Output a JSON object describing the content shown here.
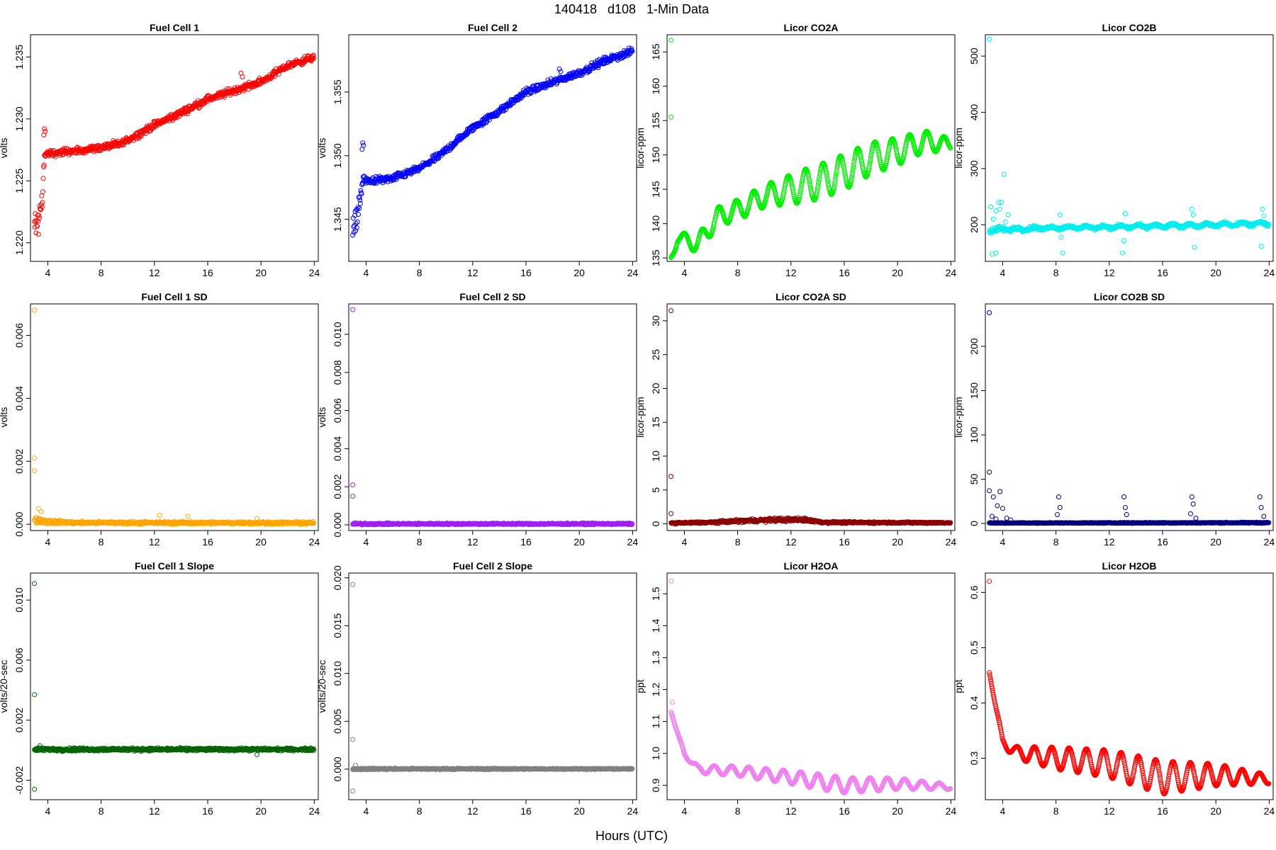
{
  "figure": {
    "title": "140418   d108   1-Min Data",
    "xlabel": "Hours (UTC)"
  },
  "chart_data": [
    {
      "type": "scatter",
      "title": "Fuel Cell 1",
      "ylabel": "volts",
      "color": "#ff0000",
      "xlim": [
        2.7,
        24.3
      ],
      "xticks": [
        4,
        8,
        12,
        16,
        20,
        24
      ],
      "ylim": [
        1.2185,
        1.2368
      ],
      "yticks": [
        "1.220",
        "1.225",
        "1.230",
        "1.235"
      ],
      "anchors": [
        [
          3.0,
          1.2212,
          0.0009
        ],
        [
          3.3,
          1.2216,
          0.0008
        ],
        [
          3.6,
          1.224,
          0.0008
        ],
        [
          3.75,
          1.227,
          0.0003
        ],
        [
          4,
          1.2272,
          0.0002
        ],
        [
          6,
          1.2274,
          0.0002
        ],
        [
          8,
          1.2277,
          0.0002
        ],
        [
          9.5,
          1.228,
          0.0002
        ],
        [
          12,
          1.2295,
          0.0002
        ],
        [
          14,
          1.2305,
          0.0002
        ],
        [
          16,
          1.2316,
          0.0002
        ],
        [
          20,
          1.233,
          0.0002
        ],
        [
          22,
          1.2343,
          0.0002
        ],
        [
          24,
          1.235,
          0.0002
        ]
      ],
      "outliers": [
        [
          3.7,
          1.2287
        ],
        [
          3.75,
          1.2292
        ],
        [
          3.8,
          1.229
        ],
        [
          18.5,
          1.2337
        ],
        [
          18.6,
          1.2334
        ]
      ]
    },
    {
      "type": "scatter",
      "title": "Fuel Cell 2",
      "ylabel": "volts",
      "color": "#0000ff",
      "xlim": [
        2.7,
        24.3
      ],
      "xticks": [
        4,
        8,
        12,
        16,
        20,
        24
      ],
      "ylim": [
        1.3417,
        1.3595
      ],
      "yticks": [
        "1.345",
        "1.350",
        "1.355"
      ],
      "anchors": [
        [
          3.0,
          1.3438,
          0.0009
        ],
        [
          3.3,
          1.3452,
          0.0007
        ],
        [
          3.6,
          1.347,
          0.0006
        ],
        [
          3.8,
          1.3482,
          0.0002
        ],
        [
          4,
          1.348,
          0.0002
        ],
        [
          6,
          1.3482,
          0.0002
        ],
        [
          8,
          1.349,
          0.0002
        ],
        [
          9.5,
          1.35,
          0.0002
        ],
        [
          12,
          1.3522,
          0.0002
        ],
        [
          14,
          1.3535,
          0.0002
        ],
        [
          16,
          1.355,
          0.0002
        ],
        [
          20,
          1.3565,
          0.0002
        ],
        [
          22,
          1.3575,
          0.0002
        ],
        [
          24,
          1.3582,
          0.0002
        ]
      ],
      "outliers": [
        [
          3.7,
          1.3505
        ],
        [
          3.75,
          1.351
        ],
        [
          3.8,
          1.3508
        ],
        [
          18.5,
          1.3568
        ],
        [
          18.6,
          1.3566
        ]
      ]
    },
    {
      "type": "scatter",
      "title": "Licor CO2A",
      "ylabel": "licor-ppm",
      "color": "#00ee00",
      "xlim": [
        2.7,
        24.3
      ],
      "xticks": [
        4,
        8,
        12,
        16,
        20,
        24
      ],
      "ylim": [
        134.5,
        167.5
      ],
      "yticks": [
        "135",
        "140",
        "145",
        "150",
        "155",
        "160",
        "165"
      ],
      "anchors": [
        [
          3,
          135,
          0
        ],
        [
          3.5,
          138,
          0
        ],
        [
          5,
          137,
          0
        ],
        [
          6.5,
          141,
          0
        ],
        [
          8,
          142,
          0
        ],
        [
          10,
          144,
          0
        ],
        [
          12,
          145,
          0
        ],
        [
          14,
          146,
          0
        ],
        [
          16,
          147.5,
          0
        ],
        [
          18,
          149.5,
          0
        ],
        [
          20,
          150.5,
          0
        ],
        [
          22,
          152,
          0
        ],
        [
          24,
          151.5,
          0
        ]
      ],
      "oscillation": {
        "period": 1.3,
        "amplitude": [
          [
            3,
            0.6
          ],
          [
            5,
            1.3
          ],
          [
            10,
            1.6
          ],
          [
            13,
            2.4
          ],
          [
            16,
            2.6
          ],
          [
            20,
            2.0
          ],
          [
            23,
            1.3
          ],
          [
            24,
            0.8
          ]
        ]
      },
      "outliers": [
        [
          3.0,
          166.7
        ],
        [
          3.0,
          155.5
        ]
      ]
    },
    {
      "type": "scatter",
      "title": "Licor CO2B",
      "ylabel": "licor-ppm",
      "color": "#00eeee",
      "xlim": [
        2.7,
        24.3
      ],
      "xticks": [
        4,
        8,
        12,
        16,
        20,
        24
      ],
      "ylim": [
        135,
        538
      ],
      "yticks": [
        "200",
        "300",
        "400",
        "500"
      ],
      "anchors": [
        [
          3,
          190,
          4
        ],
        [
          4,
          192,
          3
        ],
        [
          8,
          195,
          2
        ],
        [
          12,
          196,
          2
        ],
        [
          16,
          198,
          2
        ],
        [
          20,
          200,
          2
        ],
        [
          24,
          203,
          2
        ]
      ],
      "oscillation": {
        "period": 1.3,
        "amplitude": [
          [
            3,
            2
          ],
          [
            24,
            3
          ]
        ]
      },
      "outliers": [
        [
          3.0,
          530
        ],
        [
          3.1,
          232
        ],
        [
          3.3,
          210
        ],
        [
          3.5,
          225
        ],
        [
          3.7,
          240
        ],
        [
          3.9,
          240
        ],
        [
          4.1,
          290
        ],
        [
          3.2,
          148
        ],
        [
          3.5,
          150
        ],
        [
          3.8,
          228
        ],
        [
          4.4,
          218
        ],
        [
          4.2,
          205
        ],
        [
          4.6,
          188
        ],
        [
          8.3,
          218
        ],
        [
          8.4,
          178
        ],
        [
          8.5,
          150
        ],
        [
          13.2,
          220
        ],
        [
          13.1,
          172
        ],
        [
          13.0,
          150
        ],
        [
          18.2,
          228
        ],
        [
          18.3,
          218
        ],
        [
          18.4,
          160
        ],
        [
          23.5,
          228
        ],
        [
          23.6,
          216
        ],
        [
          23.4,
          162
        ]
      ]
    },
    {
      "type": "scatter",
      "title": "Fuel Cell 1 SD",
      "ylabel": "volts",
      "color": "#ffa500",
      "xlim": [
        2.7,
        24.3
      ],
      "xticks": [
        4,
        8,
        12,
        16,
        20,
        24
      ],
      "ylim": [
        -0.0002,
        0.007
      ],
      "yticks": [
        "0.000",
        "0.002",
        "0.004",
        "0.006"
      ],
      "anchors": [
        [
          3,
          0.00015,
          7e-05
        ],
        [
          4,
          8e-05,
          5e-05
        ],
        [
          6,
          5e-05,
          3e-05
        ],
        [
          24,
          4e-05,
          3e-05
        ]
      ],
      "outliers": [
        [
          3.0,
          0.0068
        ],
        [
          3.0,
          0.0021
        ],
        [
          3.0,
          0.0017
        ],
        [
          3.3,
          0.0005
        ],
        [
          3.5,
          0.0004
        ],
        [
          12.4,
          0.00028
        ],
        [
          14.5,
          0.00025
        ],
        [
          19.7,
          0.00018
        ]
      ]
    },
    {
      "type": "scatter",
      "title": "Fuel Cell 2 SD",
      "ylabel": "volts",
      "color": "#a020f0",
      "xlim": [
        2.7,
        24.3
      ],
      "xticks": [
        4,
        8,
        12,
        16,
        20,
        24
      ],
      "ylim": [
        -0.0003,
        0.0116
      ],
      "yticks": [
        "0.000",
        "0.002",
        "0.004",
        "0.006",
        "0.008",
        "0.010"
      ],
      "anchors": [
        [
          3,
          5e-05,
          4e-05
        ],
        [
          6,
          5e-05,
          3e-05
        ],
        [
          24,
          5e-05,
          3e-05
        ]
      ],
      "outliers": [
        [
          3.0,
          0.0113
        ],
        [
          3.0,
          0.0021
        ],
        [
          3.0,
          0.0015
        ]
      ]
    },
    {
      "type": "scatter",
      "title": "Licor CO2A SD",
      "ylabel": "licor-ppm",
      "color": "#8b0000",
      "xlim": [
        2.7,
        24.3
      ],
      "xticks": [
        4,
        8,
        12,
        16,
        20,
        24
      ],
      "ylim": [
        -1.0,
        32.5
      ],
      "yticks": [
        "0",
        "5",
        "10",
        "15",
        "20",
        "25",
        "30"
      ],
      "anchors": [
        [
          3,
          0.1,
          0.08
        ],
        [
          6,
          0.2,
          0.1
        ],
        [
          8,
          0.4,
          0.15
        ],
        [
          11,
          0.6,
          0.2
        ],
        [
          13,
          0.6,
          0.2
        ],
        [
          14.5,
          0.2,
          0.1
        ],
        [
          24,
          0.15,
          0.08
        ]
      ],
      "outliers": [
        [
          3.0,
          31.5
        ],
        [
          3.0,
          7.0
        ],
        [
          3.0,
          1.5
        ]
      ]
    },
    {
      "type": "scatter",
      "title": "Licor CO2B SD",
      "ylabel": "licor-ppm",
      "color": "#000080",
      "xlim": [
        2.7,
        24.3
      ],
      "xticks": [
        4,
        8,
        12,
        16,
        20,
        24
      ],
      "ylim": [
        -8,
        248
      ],
      "yticks": [
        "0",
        "50",
        "100",
        "150",
        "200"
      ],
      "anchors": [
        [
          3,
          0.5,
          0.3
        ],
        [
          24,
          0.8,
          0.4
        ]
      ],
      "outliers": [
        [
          3.0,
          238
        ],
        [
          3.0,
          58
        ],
        [
          3.0,
          37
        ],
        [
          3.3,
          30
        ],
        [
          3.6,
          20
        ],
        [
          3.2,
          8
        ],
        [
          3.8,
          36
        ],
        [
          4.0,
          17
        ],
        [
          3.5,
          5
        ],
        [
          4.3,
          6
        ],
        [
          4.6,
          4
        ],
        [
          8.2,
          30
        ],
        [
          8.3,
          18
        ],
        [
          8.1,
          10
        ],
        [
          13.1,
          30
        ],
        [
          13.2,
          18
        ],
        [
          13.3,
          10
        ],
        [
          18.2,
          30
        ],
        [
          18.3,
          22
        ],
        [
          18.1,
          11
        ],
        [
          18.5,
          6
        ],
        [
          23.3,
          30
        ],
        [
          23.4,
          18
        ],
        [
          23.6,
          8
        ]
      ]
    },
    {
      "type": "scatter",
      "title": "Fuel Cell 1 Slope",
      "ylabel": "volts/20-sec",
      "color": "#006400",
      "xlim": [
        2.7,
        24.3
      ],
      "xticks": [
        4,
        8,
        12,
        16,
        20,
        24
      ],
      "ylim": [
        -0.0033,
        0.0118
      ],
      "yticks": [
        "-0.002",
        "0.002",
        "0.006",
        "0.010"
      ],
      "anchors": [
        [
          3,
          5e-05,
          8e-05
        ],
        [
          24,
          5e-05,
          6e-05
        ]
      ],
      "outliers": [
        [
          3.0,
          0.0111
        ],
        [
          3.0,
          0.0037
        ],
        [
          3.0,
          -0.0026
        ],
        [
          3.4,
          0.0003
        ],
        [
          19.7,
          -0.0003
        ]
      ]
    },
    {
      "type": "scatter",
      "title": "Fuel Cell 2 Slope",
      "ylabel": "volts/20-sec",
      "color": "#808080",
      "xlim": [
        2.7,
        24.3
      ],
      "xticks": [
        4,
        8,
        12,
        16,
        20,
        24
      ],
      "ylim": [
        -0.0032,
        0.0205
      ],
      "yticks": [
        "0.000",
        "0.005",
        "0.010",
        "0.015",
        "0.020"
      ],
      "anchors": [
        [
          3,
          2e-05,
          6e-05
        ],
        [
          24,
          2e-05,
          4e-05
        ]
      ],
      "outliers": [
        [
          3.0,
          0.0193
        ],
        [
          3.0,
          0.0031
        ],
        [
          3.0,
          -0.0023
        ],
        [
          3.2,
          0.0004
        ]
      ]
    },
    {
      "type": "scatter",
      "title": "Licor H2OA",
      "ylabel": "ppt",
      "color": "#ee82ee",
      "xlim": [
        2.7,
        24.3
      ],
      "xticks": [
        4,
        8,
        12,
        16,
        20,
        24
      ],
      "ylim": [
        0.855,
        1.565
      ],
      "yticks": [
        "0.9",
        "1.0",
        "1.1",
        "1.2",
        "1.3",
        "1.4",
        "1.5"
      ],
      "anchors": [
        [
          3,
          1.13,
          0
        ],
        [
          3.5,
          1.06,
          0
        ],
        [
          4,
          1.0,
          0
        ],
        [
          5,
          0.95,
          0
        ],
        [
          8,
          0.945,
          0
        ],
        [
          12,
          0.925,
          0
        ],
        [
          16,
          0.9,
          0
        ],
        [
          20,
          0.905,
          0
        ],
        [
          24,
          0.895,
          0
        ]
      ],
      "oscillation": {
        "period": 1.3,
        "amplitude": [
          [
            3,
            0.0
          ],
          [
            5,
            0.012
          ],
          [
            10,
            0.018
          ],
          [
            15,
            0.025
          ],
          [
            19,
            0.02
          ],
          [
            24,
            0.008
          ]
        ]
      },
      "outliers": [
        [
          3.0,
          1.54
        ],
        [
          3.1,
          1.16
        ]
      ]
    },
    {
      "type": "scatter",
      "title": "Licor H2OB",
      "ylabel": "ppt",
      "color": "#ff0000",
      "xlim": [
        2.7,
        24.3
      ],
      "xticks": [
        4,
        8,
        12,
        16,
        20,
        24
      ],
      "ylim": [
        0.225,
        0.635
      ],
      "yticks": [
        "0.3",
        "0.4",
        "0.5",
        "0.6"
      ],
      "anchors": [
        [
          3,
          0.455,
          0
        ],
        [
          3.5,
          0.39,
          0
        ],
        [
          4,
          0.33,
          0
        ],
        [
          5,
          0.31,
          0
        ],
        [
          8,
          0.3,
          0
        ],
        [
          12,
          0.29,
          0
        ],
        [
          16,
          0.265,
          0
        ],
        [
          20,
          0.27,
          0
        ],
        [
          24,
          0.262,
          0
        ]
      ],
      "oscillation": {
        "period": 1.3,
        "amplitude": [
          [
            3,
            0.0
          ],
          [
            4.5,
            0.01
          ],
          [
            8,
            0.02
          ],
          [
            12,
            0.025
          ],
          [
            16,
            0.03
          ],
          [
            20,
            0.02
          ],
          [
            24,
            0.008
          ]
        ]
      },
      "outliers": [
        [
          3.0,
          0.62
        ]
      ]
    }
  ]
}
